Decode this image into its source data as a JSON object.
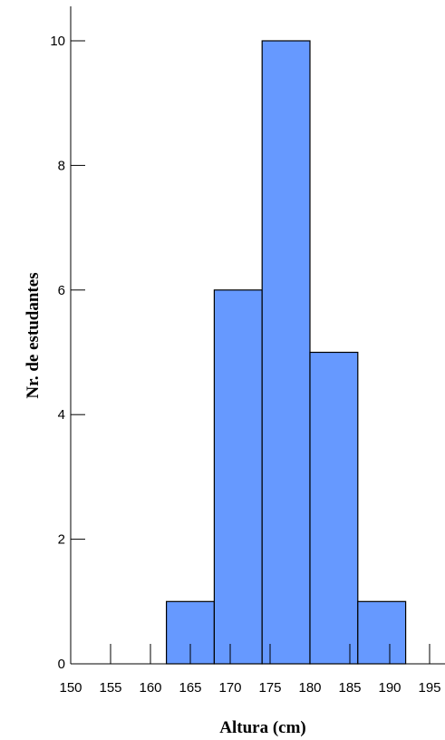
{
  "chart_data": {
    "type": "histogram",
    "xlabel": "Altura (cm)",
    "ylabel": "Nr. de estudantes",
    "xlim": [
      150,
      195
    ],
    "ylim": [
      0,
      10
    ],
    "x_ticks": [
      150,
      155,
      160,
      165,
      170,
      175,
      180,
      185,
      190,
      195
    ],
    "y_ticks": [
      0,
      2,
      4,
      6,
      8,
      10
    ],
    "bins": [
      {
        "start": 162,
        "end": 168,
        "count": 1
      },
      {
        "start": 168,
        "end": 174,
        "count": 6
      },
      {
        "start": 174,
        "end": 180,
        "count": 10
      },
      {
        "start": 180,
        "end": 186,
        "count": 5
      },
      {
        "start": 186,
        "end": 192,
        "count": 1
      }
    ],
    "bar_color": "#6699ff",
    "edge_color": "#000000",
    "grid": false
  }
}
